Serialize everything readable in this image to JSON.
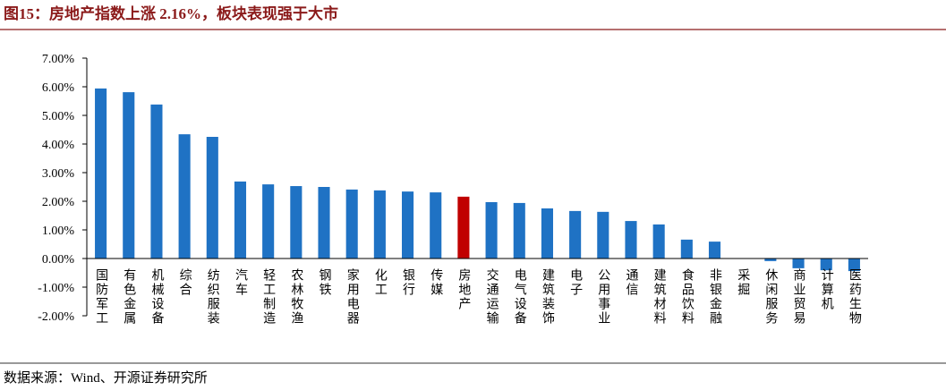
{
  "chart_data": {
    "type": "bar",
    "title": "图15：房地产指数上涨 2.16%，板块表现强于大市",
    "source": "数据来源：Wind、开源证券研究所",
    "categories": [
      "国防军工",
      "有色金属",
      "机械设备",
      "综合",
      "纺织服装",
      "汽车",
      "轻工制造",
      "农林牧渔",
      "钢铁",
      "家用电器",
      "化工",
      "银行",
      "传媒",
      "房地产",
      "交通运输",
      "电气设备",
      "建筑装饰",
      "电子",
      "公用事业",
      "通信",
      "建筑材料",
      "食品饮料",
      "非银金融",
      "采掘",
      "休闲服务",
      "商业贸易",
      "计算机",
      "医药生物"
    ],
    "values": [
      5.94,
      5.81,
      5.38,
      4.34,
      4.25,
      2.69,
      2.59,
      2.53,
      2.5,
      2.41,
      2.38,
      2.34,
      2.31,
      2.16,
      1.97,
      1.94,
      1.75,
      1.66,
      1.63,
      1.31,
      1.19,
      0.66,
      0.59,
      0.01,
      -0.09,
      -0.34,
      -0.41,
      -0.44
    ],
    "colors": [
      "#1f72c4",
      "#1f72c4",
      "#1f72c4",
      "#1f72c4",
      "#1f72c4",
      "#1f72c4",
      "#1f72c4",
      "#1f72c4",
      "#1f72c4",
      "#1f72c4",
      "#1f72c4",
      "#1f72c4",
      "#1f72c4",
      "#c00000",
      "#1f72c4",
      "#1f72c4",
      "#1f72c4",
      "#1f72c4",
      "#1f72c4",
      "#1f72c4",
      "#1f72c4",
      "#1f72c4",
      "#1f72c4",
      "#1f72c4",
      "#1f72c4",
      "#1f72c4",
      "#1f72c4",
      "#1f72c4"
    ],
    "ylim": [
      -2,
      7
    ],
    "yticks": [
      {
        "value": -2,
        "label": "-2.00%"
      },
      {
        "value": -1,
        "label": "-1.00%"
      },
      {
        "value": 0,
        "label": "0.00%"
      },
      {
        "value": 1,
        "label": "1.00%"
      },
      {
        "value": 2,
        "label": "2.00%"
      },
      {
        "value": 3,
        "label": "3.00%"
      },
      {
        "value": 4,
        "label": "4.00%"
      },
      {
        "value": 5,
        "label": "5.00%"
      },
      {
        "value": 6,
        "label": "6.00%"
      },
      {
        "value": 7,
        "label": "7.00%"
      }
    ],
    "grid": false
  }
}
